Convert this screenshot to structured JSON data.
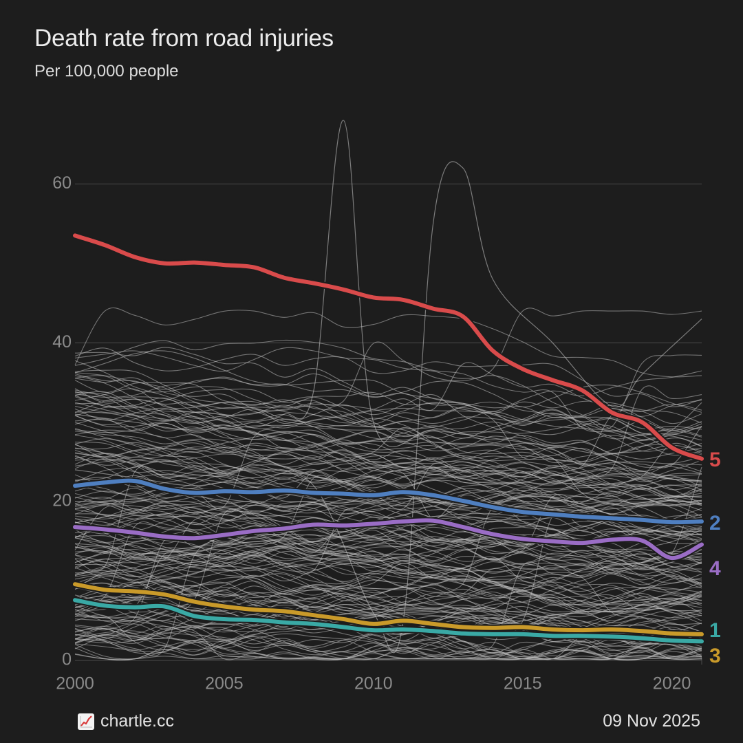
{
  "header": {
    "title": "Death rate from road injuries",
    "subtitle": "Per 100,000 people"
  },
  "footer": {
    "brand": "chartle.cc",
    "brand_icon": "chart-increasing-icon",
    "date": "09 Nov 2025"
  },
  "colors": {
    "background": "#1d1d1d",
    "grid": "#4a4a4a",
    "axis_text": "#8a8a8a",
    "background_lines": "#bdbdbd"
  },
  "chart_data": {
    "type": "line",
    "title": "Death rate from road injuries",
    "subtitle": "Per 100,000 people",
    "xlabel": "",
    "ylabel": "",
    "xlim": [
      2000,
      2021
    ],
    "ylim": [
      0,
      68
    ],
    "xticks": [
      2000,
      2005,
      2010,
      2015,
      2020
    ],
    "xtick_labels": [
      "2000",
      "2005",
      "2010",
      "2015",
      "2020"
    ],
    "yticks": [
      0,
      20,
      40,
      60
    ],
    "ytick_labels": [
      "0",
      "20",
      "40",
      "60"
    ],
    "grid": true,
    "background_series_note": "many unlabeled country series drawn in light gray",
    "x": [
      2000,
      2001,
      2002,
      2003,
      2004,
      2005,
      2006,
      2007,
      2008,
      2009,
      2010,
      2011,
      2012,
      2013,
      2014,
      2015,
      2016,
      2017,
      2018,
      2019,
      2020,
      2021
    ],
    "series": [
      {
        "name": "5",
        "color": "#d94b4b",
        "values": [
          53.5,
          52.3,
          50.8,
          50.0,
          50.1,
          49.8,
          49.5,
          48.2,
          47.5,
          46.7,
          45.7,
          45.4,
          44.3,
          43.3,
          39.0,
          36.7,
          35.3,
          34.0,
          31.2,
          30.0,
          26.8,
          25.4
        ]
      },
      {
        "name": "2",
        "color": "#4f7fc0",
        "values": [
          22.0,
          22.4,
          22.6,
          21.6,
          21.1,
          21.3,
          21.2,
          21.4,
          21.1,
          21.0,
          20.8,
          21.2,
          20.8,
          20.1,
          19.3,
          18.7,
          18.4,
          18.1,
          17.9,
          17.7,
          17.4,
          17.5
        ]
      },
      {
        "name": "4",
        "color": "#9a6dc5",
        "values": [
          16.8,
          16.5,
          16.1,
          15.6,
          15.4,
          15.8,
          16.3,
          16.6,
          17.1,
          17.0,
          17.2,
          17.5,
          17.6,
          16.8,
          15.9,
          15.3,
          15.0,
          14.8,
          15.2,
          15.1,
          12.9,
          14.6
        ]
      },
      {
        "name": "3",
        "color": "#c99a2a",
        "values": [
          9.6,
          8.9,
          8.7,
          8.3,
          7.4,
          6.8,
          6.4,
          6.2,
          5.7,
          5.2,
          4.6,
          5.0,
          4.6,
          4.2,
          4.1,
          4.2,
          3.9,
          3.8,
          3.9,
          3.7,
          3.4,
          3.3
        ]
      },
      {
        "name": "1",
        "color": "#3aa9a5",
        "values": [
          7.6,
          6.9,
          6.7,
          6.8,
          5.6,
          5.2,
          5.1,
          4.8,
          4.6,
          4.2,
          3.8,
          3.9,
          3.7,
          3.4,
          3.3,
          3.3,
          3.1,
          3.1,
          3.0,
          2.8,
          2.5,
          2.4
        ]
      }
    ]
  }
}
